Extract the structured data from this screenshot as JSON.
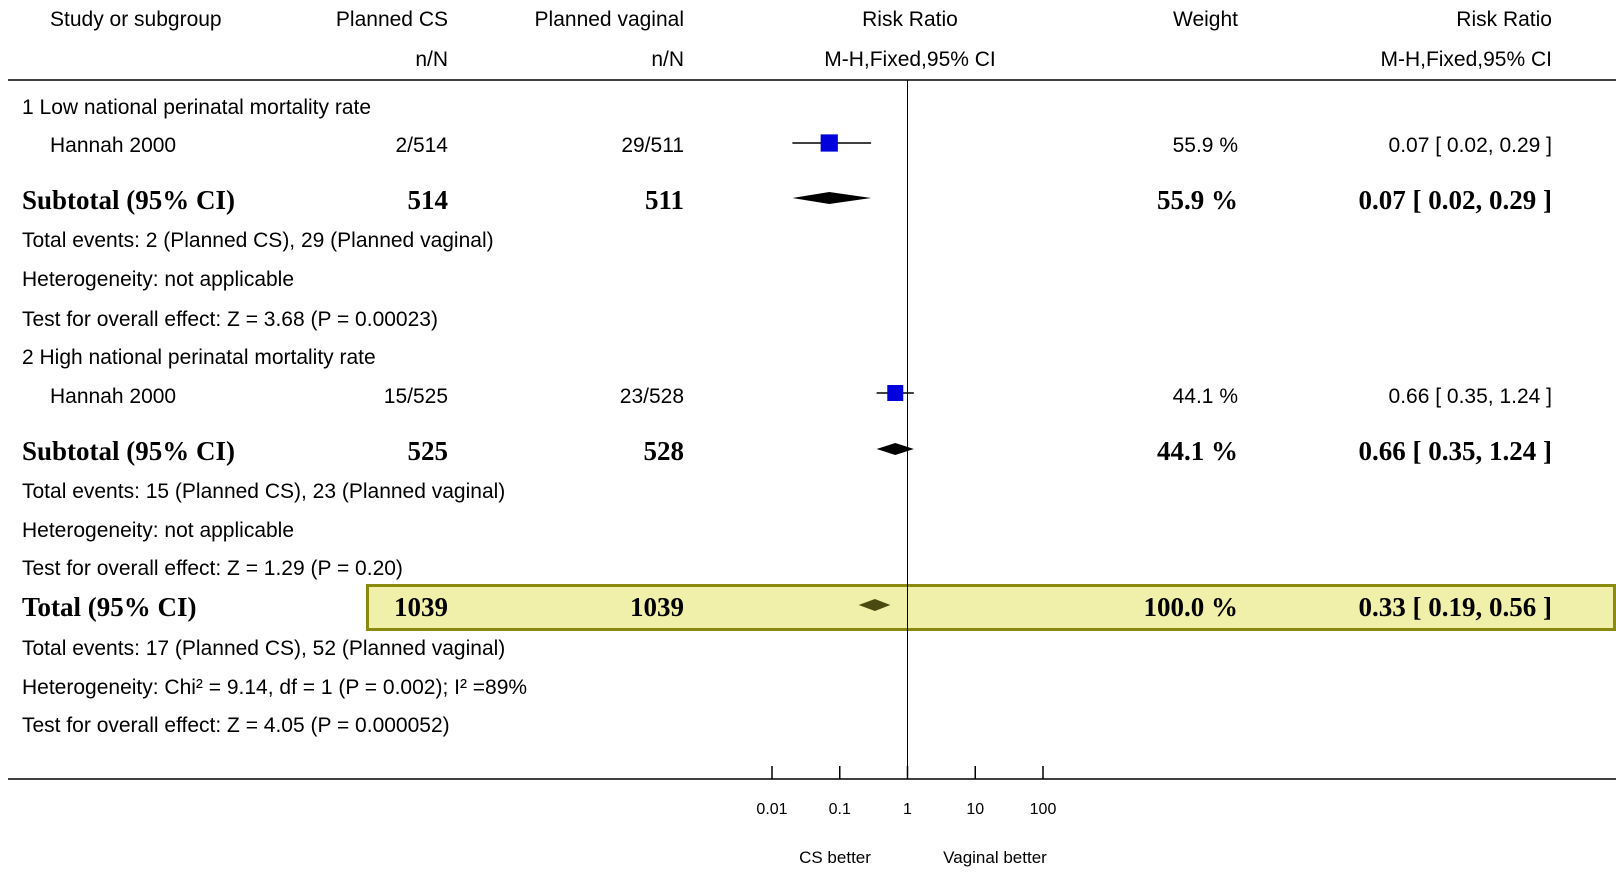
{
  "header": {
    "study": "Study or subgroup",
    "cs": "Planned CS",
    "vaginal": "Planned vaginal",
    "risk_ratio": "Risk Ratio",
    "weight": "Weight",
    "risk_ratio_right": "Risk Ratio",
    "cs_sub": "n/N",
    "vaginal_sub": "n/N",
    "method": "M-H,Fixed,95% CI",
    "method_right": "M-H,Fixed,95% CI"
  },
  "group1": {
    "title": "1 Low national perinatal mortality rate",
    "study": "Hannah 2000",
    "cs": "2/514",
    "vaginal": "29/511",
    "weight": "55.9 %",
    "rr": "0.07 [ 0.02, 0.29 ]",
    "subtotal_label": "Subtotal (95% CI)",
    "subtotal_cs": "514",
    "subtotal_vaginal": "511",
    "subtotal_weight": "55.9 %",
    "subtotal_rr": "0.07 [ 0.02, 0.29 ]",
    "events": "Total events: 2 (Planned CS), 29 (Planned vaginal)",
    "heterogeneity": "Heterogeneity: not applicable",
    "overall": "Test for overall effect: Z = 3.68 (P = 0.00023)"
  },
  "group2": {
    "title": "2 High national perinatal mortality rate",
    "study": "Hannah 2000",
    "cs": "15/525",
    "vaginal": "23/528",
    "weight": "44.1 %",
    "rr": "0.66 [ 0.35, 1.24 ]",
    "subtotal_label": "Subtotal (95% CI)",
    "subtotal_cs": "525",
    "subtotal_vaginal": "528",
    "subtotal_weight": "44.1 %",
    "subtotal_rr": "0.66 [ 0.35, 1.24 ]",
    "events": "Total events: 15 (Planned CS), 23 (Planned vaginal)",
    "heterogeneity": "Heterogeneity: not applicable",
    "overall": "Test for overall effect: Z = 1.29 (P = 0.20)"
  },
  "total": {
    "label": "Total (95% CI)",
    "cs": "1039",
    "vaginal": "1039",
    "weight": "100.0 %",
    "rr": "0.33 [ 0.19, 0.56 ]",
    "events": "Total events: 17 (Planned CS), 52 (Planned vaginal)",
    "heterogeneity": "Heterogeneity: Chi² = 9.14, df = 1 (P = 0.002); I² =89%",
    "overall": "Test for overall effect: Z = 4.05 (P = 0.000052)"
  },
  "axis": {
    "left_label": "CS better",
    "right_label": "Vaginal better"
  },
  "colors": {
    "study_box": "#0000dd",
    "diamond": "#000000",
    "total_diamond": "#4a4a10",
    "highlight_fill": "#f0f0aa",
    "highlight_border": "#8a8a10"
  },
  "chart_data": {
    "type": "forest",
    "scale": "log",
    "xlim": [
      0.01,
      100
    ],
    "ticks": [
      0.01,
      0.1,
      1,
      10,
      100
    ],
    "tick_labels": [
      "0.01",
      "0.1",
      "1",
      "10",
      "100"
    ],
    "reference_line": 1,
    "studies": [
      {
        "group": "1 Low national perinatal mortality rate",
        "name": "Hannah 2000",
        "rr": 0.07,
        "lo": 0.02,
        "hi": 0.29,
        "weight": 55.9
      },
      {
        "group": "2 High national perinatal mortality rate",
        "name": "Hannah 2000",
        "rr": 0.66,
        "lo": 0.35,
        "hi": 1.24,
        "weight": 44.1
      }
    ],
    "subtotals": [
      {
        "rr": 0.07,
        "lo": 0.02,
        "hi": 0.29
      },
      {
        "rr": 0.66,
        "lo": 0.35,
        "hi": 1.24
      }
    ],
    "total": {
      "rr": 0.33,
      "lo": 0.19,
      "hi": 0.56
    }
  }
}
